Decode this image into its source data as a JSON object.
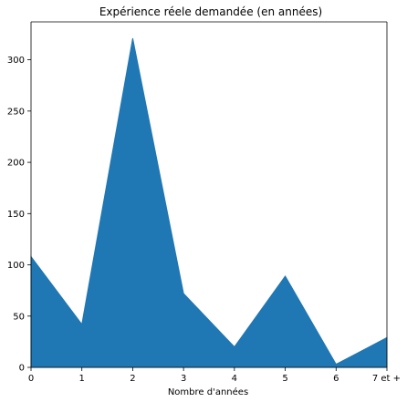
{
  "chart_data": {
    "type": "area",
    "title": "Expérience réele demandée (en années)",
    "xlabel": "Nombre d'années",
    "ylabel": "",
    "categories": [
      "0",
      "1",
      "2",
      "3",
      "4",
      "5",
      "6",
      "7 et +"
    ],
    "values": [
      108,
      42,
      321,
      72,
      20,
      89,
      3,
      29
    ],
    "ylim": [
      0,
      337
    ],
    "yticks": [
      0,
      50,
      100,
      150,
      200,
      250,
      300
    ],
    "grid": false,
    "colors": {
      "fill": "#1f77b4",
      "axis": "#000000"
    }
  }
}
